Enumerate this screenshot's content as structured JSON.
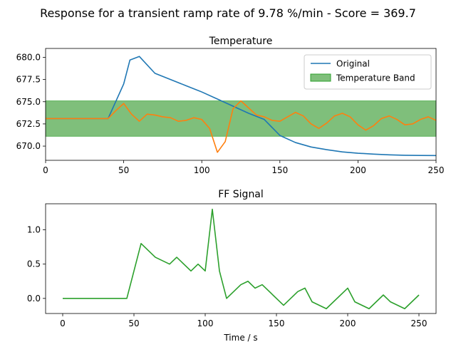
{
  "figure_title": "Response for a transient ramp rate of 9.78 %/min - Score = 369.7",
  "chart_data": [
    {
      "type": "line",
      "title": "Temperature",
      "xlabel": "",
      "ylabel": "",
      "xlim": [
        0,
        250
      ],
      "ylim": [
        668.4,
        681.0
      ],
      "x_ticks": [
        "0",
        "50",
        "100",
        "150",
        "200",
        "250"
      ],
      "y_ticks": [
        "670.0",
        "672.5",
        "675.0",
        "677.5",
        "680.0"
      ],
      "band": {
        "name": "Temperature Band",
        "low": 671.1,
        "high": 675.1,
        "color": "#7fbf7b"
      },
      "legend_placement": "top-right",
      "series": [
        {
          "name": "Original",
          "color": "#1f77b4",
          "points": [
            [
              0,
              673.1
            ],
            [
              40,
              673.1
            ],
            [
              50,
              677.0
            ],
            [
              54,
              679.7
            ],
            [
              60,
              680.1
            ],
            [
              70,
              678.2
            ],
            [
              80,
              677.5
            ],
            [
              90,
              676.8
            ],
            [
              100,
              676.1
            ],
            [
              110,
              675.3
            ],
            [
              120,
              674.5
            ],
            [
              130,
              673.7
            ],
            [
              140,
              673.0
            ],
            [
              150,
              671.2
            ],
            [
              160,
              670.4
            ],
            [
              170,
              669.9
            ],
            [
              180,
              669.6
            ],
            [
              190,
              669.35
            ],
            [
              200,
              669.2
            ],
            [
              210,
              669.1
            ],
            [
              220,
              669.02
            ],
            [
              230,
              668.97
            ],
            [
              240,
              668.95
            ],
            [
              250,
              668.94
            ]
          ]
        },
        {
          "name": "",
          "color": "#ff7f0e",
          "points": [
            [
              0,
              673.1
            ],
            [
              40,
              673.1
            ],
            [
              45,
              674.0
            ],
            [
              50,
              674.8
            ],
            [
              55,
              673.6
            ],
            [
              60,
              672.8
            ],
            [
              65,
              673.6
            ],
            [
              70,
              673.5
            ],
            [
              75,
              673.3
            ],
            [
              80,
              673.2
            ],
            [
              85,
              672.8
            ],
            [
              90,
              672.9
            ],
            [
              95,
              673.2
            ],
            [
              100,
              673.0
            ],
            [
              105,
              672.0
            ],
            [
              110,
              669.3
            ],
            [
              115,
              670.5
            ],
            [
              120,
              674.2
            ],
            [
              125,
              675.1
            ],
            [
              130,
              674.3
            ],
            [
              135,
              673.5
            ],
            [
              140,
              673.3
            ],
            [
              145,
              672.9
            ],
            [
              150,
              672.8
            ],
            [
              155,
              673.3
            ],
            [
              160,
              673.8
            ],
            [
              165,
              673.4
            ],
            [
              170,
              672.5
            ],
            [
              175,
              672.0
            ],
            [
              180,
              672.6
            ],
            [
              185,
              673.4
            ],
            [
              190,
              673.7
            ],
            [
              195,
              673.3
            ],
            [
              200,
              672.4
            ],
            [
              205,
              671.8
            ],
            [
              210,
              672.3
            ],
            [
              215,
              673.1
            ],
            [
              220,
              673.4
            ],
            [
              225,
              673.0
            ],
            [
              230,
              672.4
            ],
            [
              235,
              672.5
            ],
            [
              240,
              673.0
            ],
            [
              245,
              673.3
            ],
            [
              250,
              672.9
            ]
          ]
        }
      ]
    },
    {
      "type": "line",
      "title": "FF Signal",
      "xlabel": "Time / s",
      "ylabel": "",
      "xlim": [
        -12,
        262
      ],
      "ylim": [
        -0.22,
        1.38
      ],
      "x_ticks": [
        "0",
        "50",
        "100",
        "150",
        "200",
        "250"
      ],
      "y_ticks": [
        "0.0",
        "0.5",
        "1.0"
      ],
      "series": [
        {
          "name": "",
          "color": "#2ca02c",
          "points": [
            [
              0,
              0
            ],
            [
              45,
              0
            ],
            [
              55,
              0.8
            ],
            [
              65,
              0.6
            ],
            [
              75,
              0.5
            ],
            [
              80,
              0.6
            ],
            [
              90,
              0.4
            ],
            [
              95,
              0.5
            ],
            [
              100,
              0.4
            ],
            [
              105,
              1.3
            ],
            [
              110,
              0.4
            ],
            [
              115,
              0
            ],
            [
              125,
              0.2
            ],
            [
              130,
              0.25
            ],
            [
              135,
              0.15
            ],
            [
              140,
              0.2
            ],
            [
              155,
              -0.1
            ],
            [
              165,
              0.1
            ],
            [
              170,
              0.15
            ],
            [
              175,
              -0.05
            ],
            [
              185,
              -0.15
            ],
            [
              200,
              0.15
            ],
            [
              205,
              -0.05
            ],
            [
              215,
              -0.15
            ],
            [
              225,
              0.05
            ],
            [
              230,
              -0.05
            ],
            [
              240,
              -0.15
            ],
            [
              250,
              0.05
            ]
          ]
        }
      ]
    }
  ]
}
